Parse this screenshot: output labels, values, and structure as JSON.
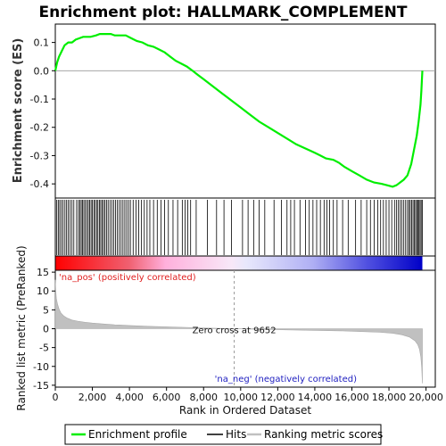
{
  "title": "Enrichment plot: HALLMARK_COMPLEMENT",
  "colors": {
    "enrichment_line": "#00ee00",
    "hits": "#000000",
    "metric_fill": "#c0c0c0",
    "pos_label": "#e02020",
    "neg_label": "#2020c0",
    "axis": "#000000"
  },
  "chart_data": [
    {
      "name": "enrichment-profile-panel",
      "type": "line",
      "ylabel": "Enrichment score (ES)",
      "xlim": [
        0,
        20500
      ],
      "ylim": [
        -0.45,
        0.165
      ],
      "yticks": [
        0.1,
        0.0,
        -0.1,
        -0.2,
        -0.3,
        -0.4
      ],
      "ytick_labels": [
        "0.1",
        "0.0",
        "-0.1",
        "-0.2",
        "-0.3",
        "-0.4"
      ],
      "series": [
        {
          "name": "Enrichment profile",
          "x": [
            0,
            100,
            200,
            350,
            500,
            700,
            900,
            1100,
            1300,
            1500,
            1700,
            1900,
            2200,
            2400,
            2600,
            2800,
            3000,
            3200,
            3500,
            3800,
            4100,
            4400,
            4700,
            5000,
            5300,
            5600,
            5900,
            6200,
            6500,
            6800,
            7100,
            7400,
            7700,
            8000,
            8500,
            9000,
            9500,
            10000,
            10500,
            11000,
            11500,
            12000,
            12500,
            13000,
            13500,
            14000,
            14300,
            14600,
            15000,
            15300,
            15600,
            16000,
            16400,
            16800,
            17200,
            17600,
            17900,
            18200,
            18400,
            18600,
            18800,
            19000,
            19200,
            19350,
            19500,
            19600,
            19700,
            19750,
            19800
          ],
          "y": [
            0.0,
            0.03,
            0.05,
            0.07,
            0.09,
            0.1,
            0.1,
            0.11,
            0.115,
            0.12,
            0.12,
            0.12,
            0.125,
            0.13,
            0.13,
            0.13,
            0.13,
            0.125,
            0.125,
            0.125,
            0.115,
            0.105,
            0.1,
            0.09,
            0.085,
            0.075,
            0.065,
            0.05,
            0.035,
            0.025,
            0.015,
            0.0,
            -0.015,
            -0.03,
            -0.055,
            -0.08,
            -0.105,
            -0.13,
            -0.155,
            -0.18,
            -0.2,
            -0.22,
            -0.24,
            -0.26,
            -0.275,
            -0.29,
            -0.3,
            -0.31,
            -0.315,
            -0.325,
            -0.34,
            -0.355,
            -0.37,
            -0.385,
            -0.395,
            -0.4,
            -0.405,
            -0.41,
            -0.405,
            -0.395,
            -0.385,
            -0.37,
            -0.33,
            -0.28,
            -0.23,
            -0.18,
            -0.12,
            -0.07,
            0.0
          ]
        }
      ]
    },
    {
      "name": "hits-panel",
      "type": "scatter",
      "hits_x": [
        80,
        160,
        240,
        330,
        420,
        520,
        610,
        700,
        800,
        900,
        1000,
        1150,
        1250,
        1330,
        1400,
        1470,
        1540,
        1620,
        1700,
        1780,
        1850,
        1930,
        2000,
        2080,
        2150,
        2230,
        2300,
        2380,
        2450,
        2530,
        2600,
        2680,
        2760,
        2850,
        2950,
        3050,
        3150,
        3250,
        3350,
        3450,
        3550,
        3650,
        3750,
        3850,
        3950,
        4050,
        4200,
        4350,
        4500,
        4650,
        4800,
        4950,
        5100,
        5300,
        5500,
        5700,
        5900,
        6100,
        6350,
        6600,
        6850,
        7000,
        7150,
        7300,
        7600,
        8200,
        8700,
        9100,
        9500,
        10100,
        10400,
        10700,
        11000,
        11300,
        11800,
        12200,
        12500,
        12700,
        12900,
        13200,
        13500,
        13700,
        13900,
        14100,
        14300,
        14500,
        14650,
        14800,
        15000,
        15200,
        15500,
        15800,
        16200,
        16500,
        16800,
        17000,
        17200,
        17400,
        17550,
        17700,
        17850,
        18000,
        18150,
        18300,
        18400,
        18500,
        18600,
        18700,
        18800,
        18900,
        19000,
        19080,
        19150,
        19220,
        19300,
        19370,
        19440,
        19500,
        19560,
        19620,
        19680,
        19740,
        19800
      ]
    },
    {
      "name": "ranked-metric-panel",
      "type": "area",
      "ylabel": "Ranked list metric (PreRanked)",
      "xlabel": "Rank in Ordered Dataset",
      "xlim": [
        0,
        20500
      ],
      "ylim": [
        -15.5,
        15.5
      ],
      "xticks": [
        0,
        2000,
        4000,
        6000,
        8000,
        10000,
        12000,
        14000,
        16000,
        18000,
        20000
      ],
      "xtick_labels": [
        "0",
        "2,000",
        "4,000",
        "6,000",
        "8,000",
        "10,000",
        "12,000",
        "14,000",
        "16,000",
        "18,000",
        "20,000"
      ],
      "yticks": [
        15,
        10,
        5,
        0,
        -5,
        -10,
        -15
      ],
      "ytick_labels": [
        "15",
        "10",
        "5",
        "0",
        "-5",
        "-10",
        "-15"
      ],
      "zero_cross_x": 9652,
      "zero_cross_label": "Zero cross at 9652",
      "pos_label": "'na_pos' (positively correlated)",
      "neg_label": "'na_neg' (negatively correlated)",
      "series": [
        {
          "name": "Ranking metric scores",
          "x": [
            0,
            20,
            60,
            120,
            200,
            300,
            450,
            650,
            900,
            1200,
            1600,
            2000,
            2600,
            3200,
            4000,
            5000,
            6000,
            7000,
            8000,
            9000,
            9652,
            10500,
            11500,
            12500,
            13500,
            14500,
            15500,
            16500,
            17500,
            18200,
            18700,
            19100,
            19400,
            19550,
            19650,
            19720,
            19770,
            19800
          ],
          "y": [
            13.0,
            10.5,
            8.0,
            6.5,
            5.2,
            4.2,
            3.4,
            2.8,
            2.3,
            2.0,
            1.7,
            1.5,
            1.25,
            1.05,
            0.85,
            0.65,
            0.5,
            0.35,
            0.2,
            0.08,
            0.0,
            -0.1,
            -0.2,
            -0.3,
            -0.4,
            -0.5,
            -0.6,
            -0.75,
            -0.95,
            -1.2,
            -1.6,
            -2.2,
            -3.2,
            -4.2,
            -5.5,
            -7.5,
            -10.5,
            -14.5
          ]
        }
      ]
    }
  ],
  "legend": {
    "items": [
      {
        "label": "Enrichment profile",
        "color": "#00ee00"
      },
      {
        "label": "Hits",
        "color": "#000000"
      },
      {
        "label": "Ranking metric scores",
        "color": "#c0c0c0"
      }
    ]
  }
}
